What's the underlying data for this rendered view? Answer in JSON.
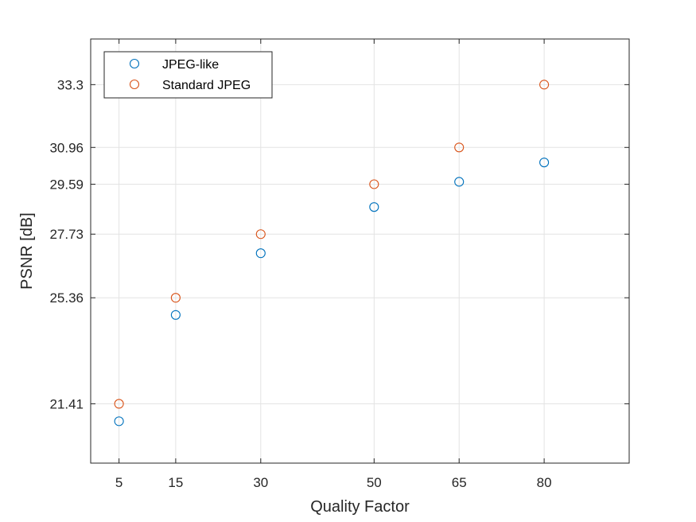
{
  "chart_data": {
    "type": "scatter",
    "title": "",
    "xlabel": "Quality Factor",
    "ylabel": "PSNR [dB]",
    "xlim": [
      0,
      95
    ],
    "ylim": [
      19.2,
      35
    ],
    "xticks": [
      5,
      15,
      30,
      50,
      65,
      80
    ],
    "yticks": [
      21.41,
      25.36,
      27.73,
      29.59,
      30.96,
      33.3
    ],
    "grid": true,
    "legend_position": "top-left",
    "series": [
      {
        "name": "JPEG-like",
        "color": "#0072BD",
        "x": [
          5,
          15,
          30,
          50,
          65,
          80
        ],
        "y": [
          20.76,
          24.72,
          27.02,
          28.74,
          29.68,
          30.4
        ]
      },
      {
        "name": "Standard JPEG",
        "color": "#D95319",
        "x": [
          5,
          15,
          30,
          50,
          65,
          80
        ],
        "y": [
          21.41,
          25.36,
          27.73,
          29.59,
          30.96,
          33.3
        ]
      }
    ]
  }
}
